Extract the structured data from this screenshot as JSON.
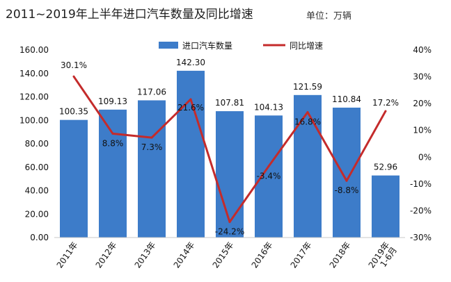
{
  "title": "2011~2019年上半年进口汽车数量及同比增速",
  "unit": "单位：万辆",
  "colors": {
    "bar": "#3d7cc9",
    "line": "#c42b2b"
  },
  "chart_data": {
    "type": "bar",
    "categories": [
      "2011年",
      "2012年",
      "2013年",
      "2014年",
      "2015年",
      "2016年",
      "2017年",
      "2018年",
      "2019年 1-6月"
    ],
    "series": [
      {
        "name": "进口汽车数量",
        "type": "bar",
        "axis": "left",
        "values": [
          100.35,
          109.13,
          117.06,
          142.3,
          107.81,
          104.13,
          121.59,
          110.84,
          52.96
        ],
        "labels": [
          "100.35",
          "109.13",
          "117.06",
          "142.30",
          "107.81",
          "104.13",
          "121.59",
          "110.84",
          "52.96"
        ]
      },
      {
        "name": "同比增速",
        "type": "line",
        "axis": "right",
        "values": [
          30.1,
          8.8,
          7.3,
          21.6,
          -24.2,
          -3.4,
          16.8,
          -8.8,
          17.2
        ],
        "labels": [
          "30.1%",
          "8.8%",
          "7.3%",
          "21.6%",
          "-24.2%",
          "-3.4%",
          "16.8%",
          "-8.8%",
          "17.2%"
        ]
      }
    ],
    "y_left": {
      "min": 0,
      "max": 160,
      "ticks": [
        "0.00",
        "20.00",
        "40.00",
        "60.00",
        "80.00",
        "100.00",
        "120.00",
        "140.00",
        "160.00"
      ]
    },
    "y_right": {
      "min": -30,
      "max": 40,
      "ticks": [
        "-30%",
        "-20%",
        "-10%",
        "0%",
        "10%",
        "20%",
        "30%",
        "40%"
      ]
    },
    "legend_position": "top-center",
    "grid": false
  }
}
